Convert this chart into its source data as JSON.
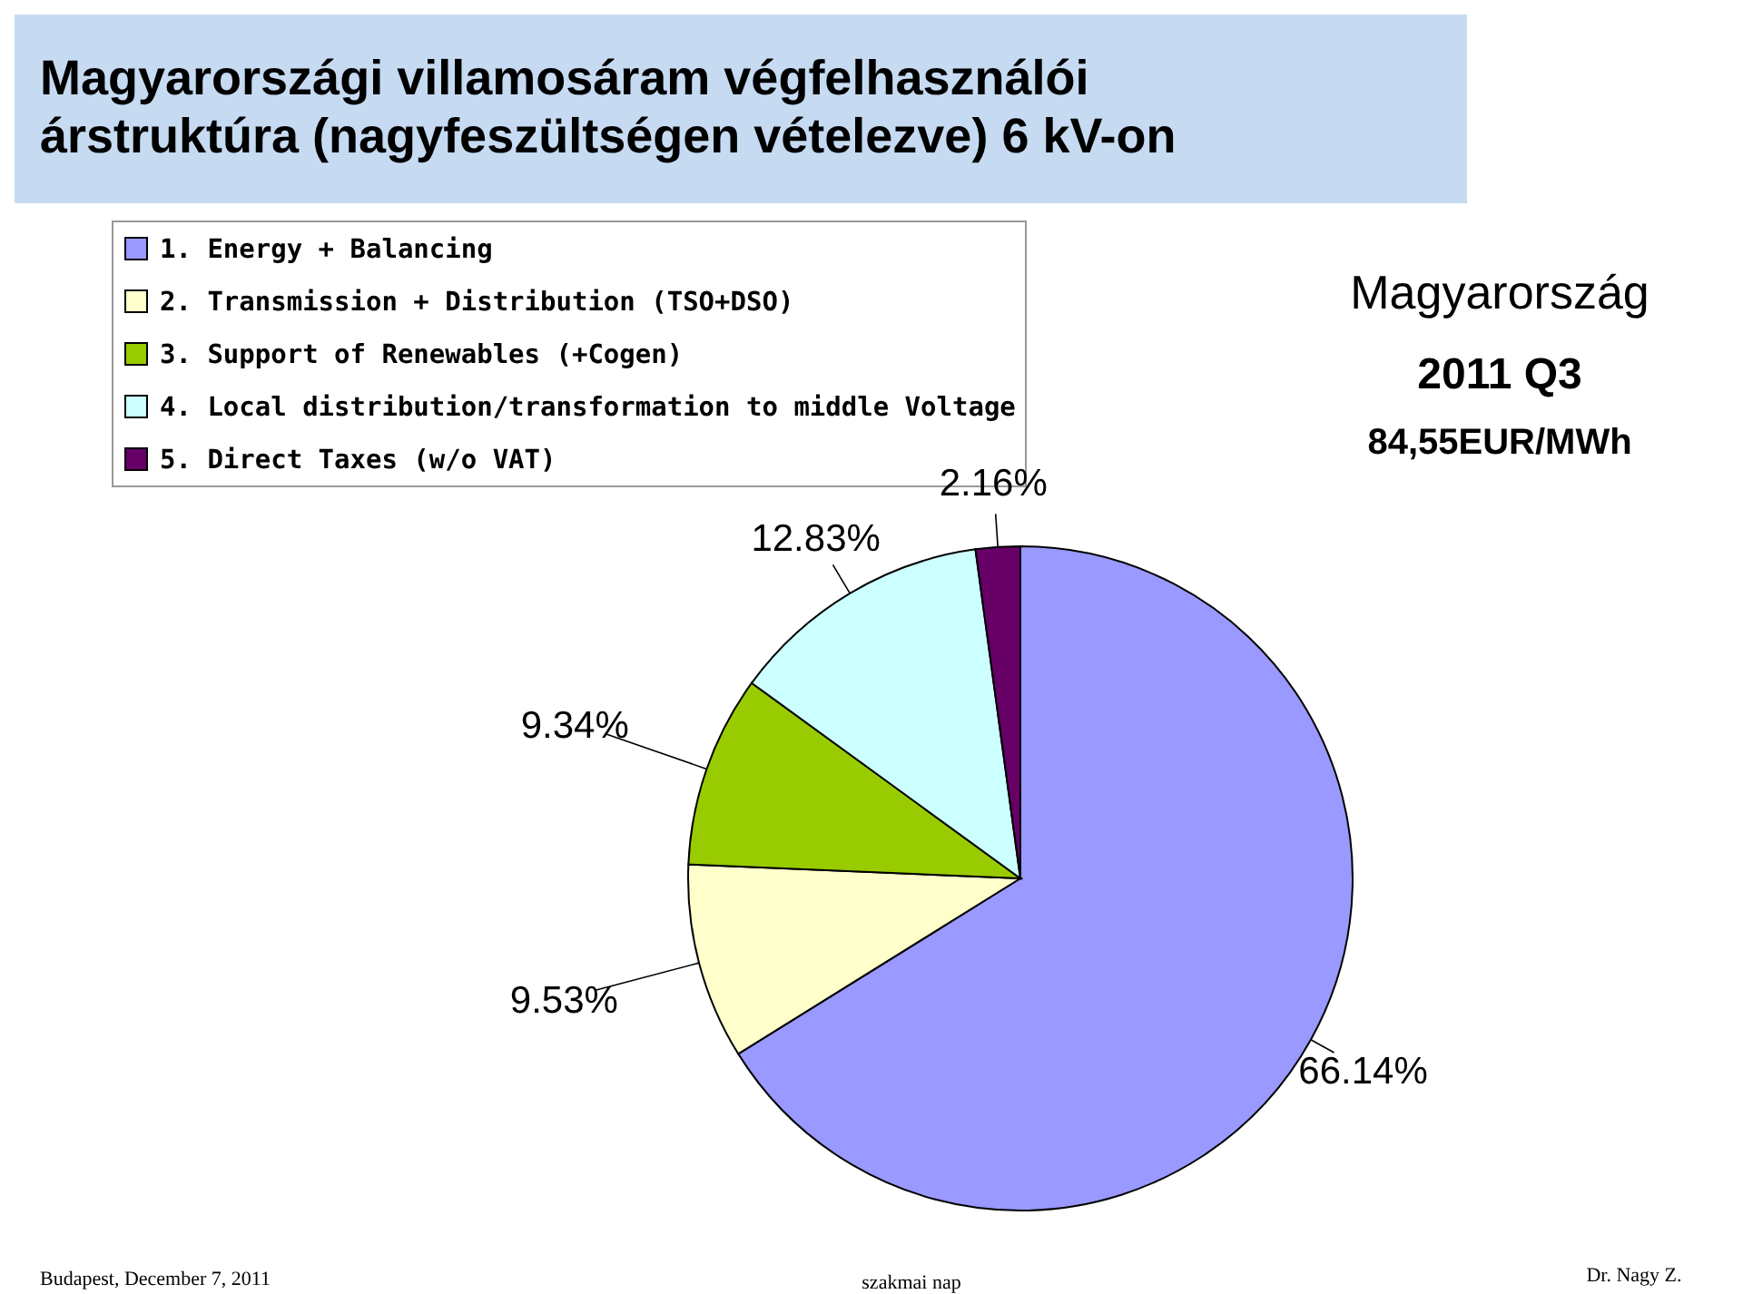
{
  "chart_data": {
    "type": "pie",
    "title": "Magyarországi villamosáram végfelhasználói\nárstruktúra (nagyfeszültségen vételezve) 6 kV-on",
    "categories": [
      "1. Energy + Balancing",
      "2. Transmission + Distribution (TSO+DSO)",
      "3. Support of Renewables (+Cogen)",
      "4. Local distribution/transformation to middle Voltage",
      "5. Direct Taxes (w/o VAT)"
    ],
    "values": [
      66.14,
      9.53,
      9.34,
      12.83,
      2.16
    ],
    "colors": [
      "#9999ff",
      "#ffffcc",
      "#99cc00",
      "#ccffff",
      "#660066"
    ],
    "value_labels": [
      "66.14%",
      "9.53%",
      "9.34%",
      "12.83%",
      "2.16%"
    ],
    "legend": "top left",
    "annotations": [
      "Magyarország",
      "2011 Q3",
      "84,55EUR/MWh",
      "Budapest, December 7, 2011",
      "szakmai nap",
      "Dr. Nagy Z."
    ]
  }
}
